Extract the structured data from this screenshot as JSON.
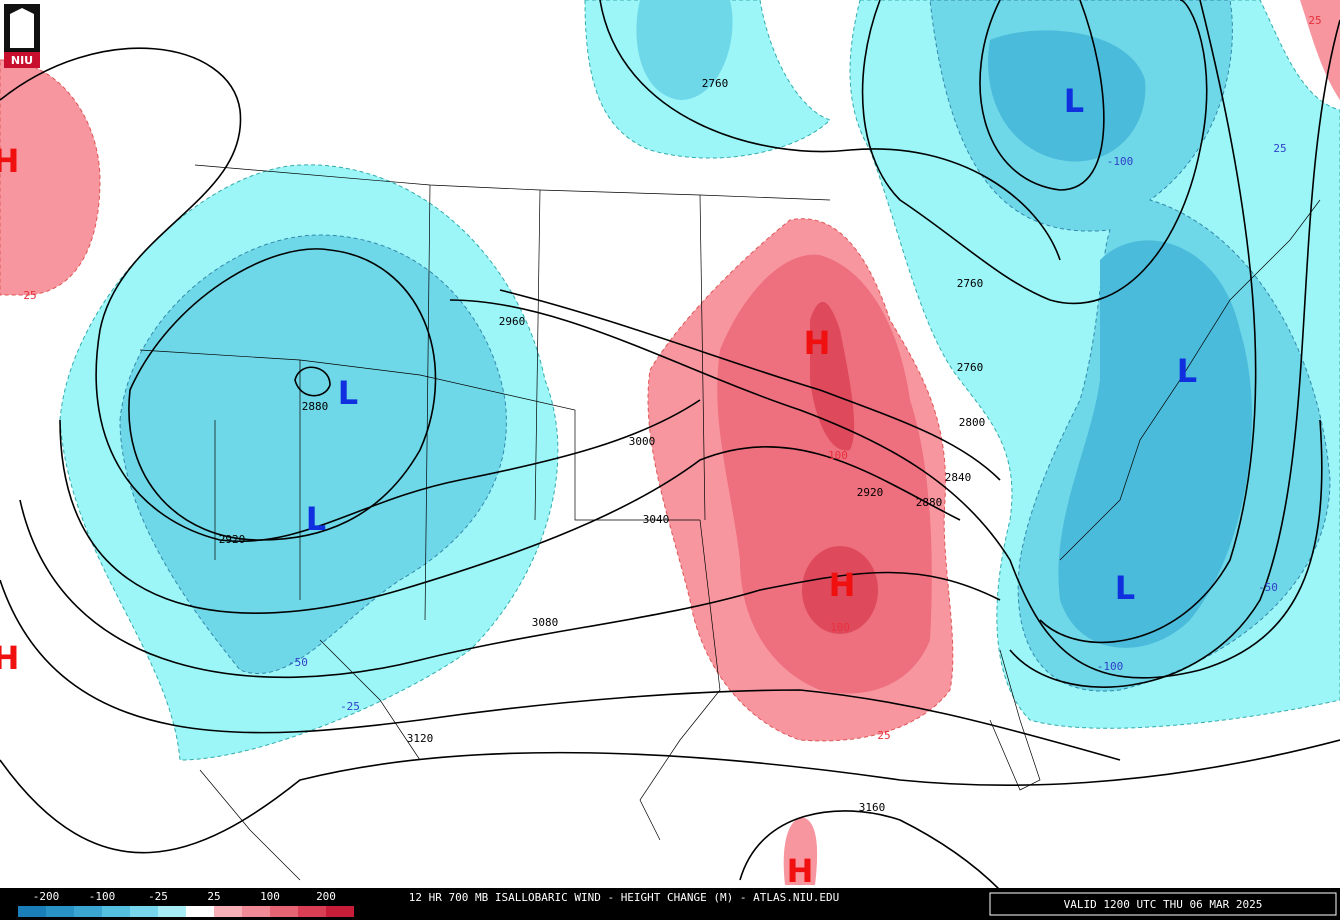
{
  "logo": "NIU",
  "contour_labels": [
    "2760",
    "2960",
    "2880",
    "2920",
    "3000",
    "3040",
    "3080",
    "3120",
    "3160",
    "2920",
    "2880",
    "2840",
    "2800",
    "2760",
    "2760",
    "25",
    "25",
    "-50",
    "-25",
    "100",
    "100",
    "25",
    "-100",
    "25",
    "-100",
    "-50"
  ],
  "centers": [
    "H",
    "H",
    "H",
    "H",
    "H",
    "L",
    "L",
    "L",
    "L",
    "L"
  ],
  "footer": {
    "legend": [
      "-200",
      "-100",
      "-25",
      "25",
      "100",
      "200"
    ],
    "title": "12 HR 700 MB ISALLOBARIC WIND - HEIGHT CHANGE (M) - ATLAS.NIU.EDU",
    "valid": "VALID 1200 UTC THU 06 MAR 2025"
  }
}
